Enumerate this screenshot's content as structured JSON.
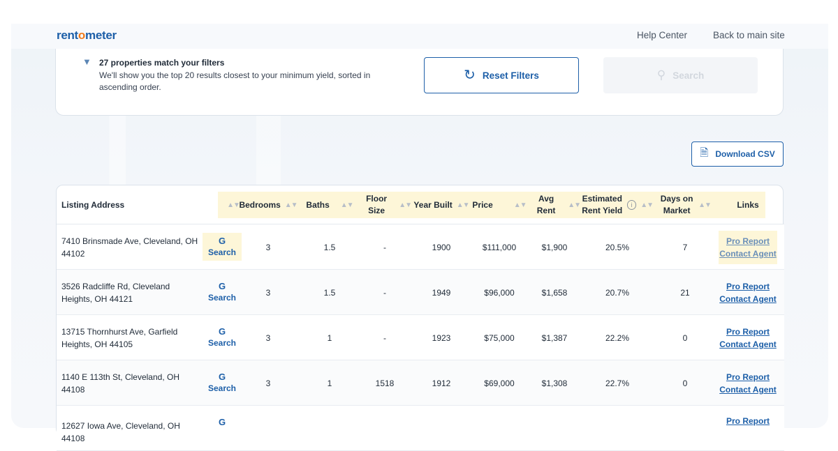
{
  "header": {
    "logo": {
      "pre": "rent",
      "o": "o",
      "post": "meter"
    },
    "nav": [
      "Help Center",
      "Back to main site"
    ]
  },
  "filters": {
    "icon": "filter-icon",
    "match_title": "27 properties match your filters",
    "match_desc": "We'll show you the top 20 results closest to your minimum yield, sorted in ascending order.",
    "reset_label": "Reset Filters",
    "search_label": "Search"
  },
  "download_label": "Download CSV",
  "table": {
    "headers": [
      "Listing Address",
      "Bedrooms",
      "Baths",
      "Floor Size",
      "Year Built",
      "Price",
      "Avg Rent",
      "Estimated Rent Yield",
      "Days on Market",
      "Links"
    ],
    "google_search_label": "Search",
    "google_glyph": "G",
    "pro_report_label": "Pro Report",
    "contact_agent_label": "Contact Agent",
    "rows": [
      {
        "address": "7410 Brinsmade Ave, Cleveland, OH 44102",
        "bedrooms": "3",
        "baths": "1.5",
        "floor": "-",
        "year": "1900",
        "price": "$111,000",
        "rent": "$1,900",
        "yield": "20.5%",
        "days": "7"
      },
      {
        "address": "3526 Radcliffe Rd, Cleveland Heights, OH 44121",
        "bedrooms": "3",
        "baths": "1.5",
        "floor": "-",
        "year": "1949",
        "price": "$96,000",
        "rent": "$1,658",
        "yield": "20.7%",
        "days": "21"
      },
      {
        "address": "13715 Thornhurst Ave, Garfield Heights, OH 44105",
        "bedrooms": "3",
        "baths": "1",
        "floor": "-",
        "year": "1923",
        "price": "$75,000",
        "rent": "$1,387",
        "yield": "22.2%",
        "days": "0"
      },
      {
        "address": "1140 E 113th St, Cleveland, OH 44108",
        "bedrooms": "3",
        "baths": "1",
        "floor": "1518",
        "year": "1912",
        "price": "$69,000",
        "rent": "$1,308",
        "yield": "22.7%",
        "days": "0"
      },
      {
        "address": "12627 Iowa Ave, Cleveland, OH 44108",
        "bedrooms": "",
        "baths": "",
        "floor": "",
        "year": "",
        "price": "",
        "rent": "",
        "yield": "",
        "days": ""
      }
    ]
  },
  "colors": {
    "brand": "#1d5fa8",
    "accent": "#f07a1a",
    "highlight": "#fdf6d8"
  }
}
